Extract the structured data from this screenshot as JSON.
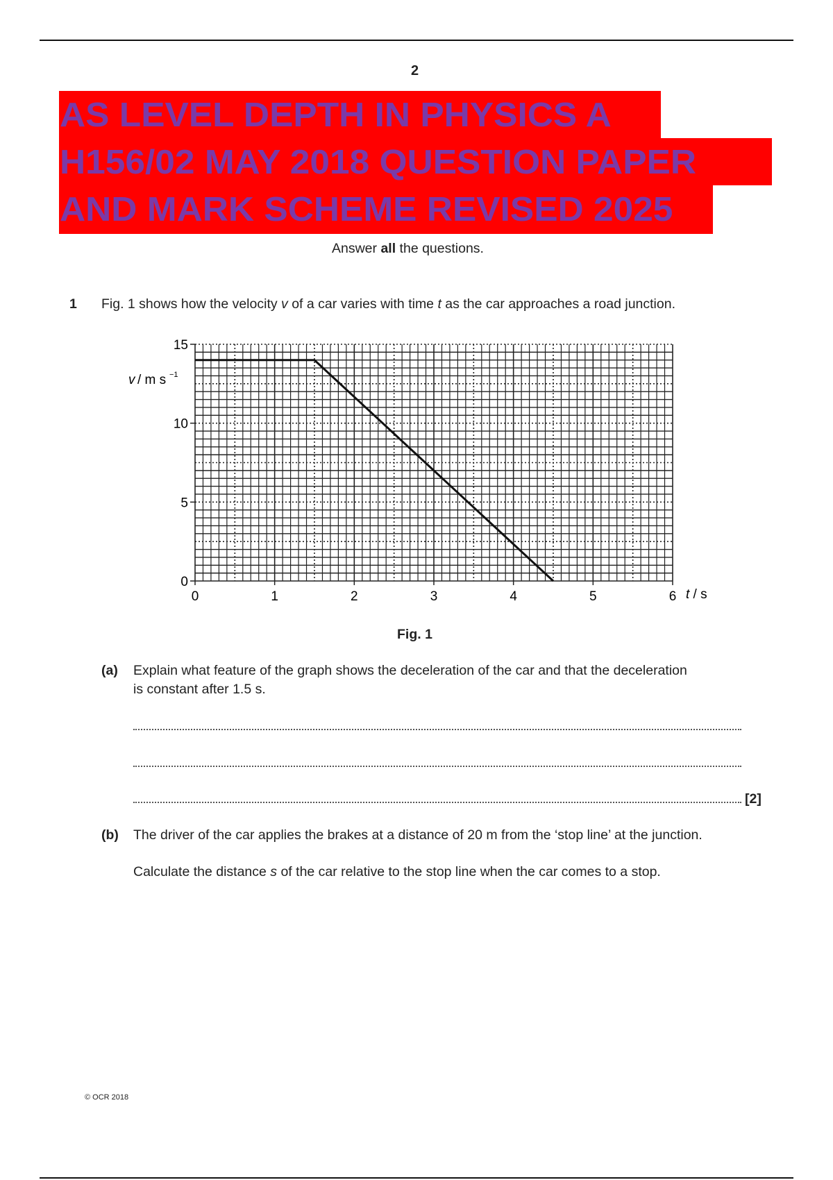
{
  "page_number": "2",
  "banner": {
    "lines": [
      "AS LEVEL DEPTH IN PHYSICS A",
      "H156/02  MAY 2018 QUESTION PAPER",
      "AND MARK SCHEME REVISED 2025"
    ],
    "background_color": "#ff0000",
    "text_color": "#7a3aa8"
  },
  "instruction": {
    "before": "Answer ",
    "bold": "all",
    "after": " the questions."
  },
  "question1": {
    "number": "1",
    "text_parts": [
      "Fig. 1 shows how the velocity ",
      "v",
      " of a car varies with time ",
      "t",
      " as the car approaches a road junction."
    ],
    "figure_caption": "Fig. 1",
    "part_a": {
      "label": "(a)",
      "text_line1": "Explain what feature of the graph shows the deceleration of the car and that the deceleration",
      "text_line2": "is constant after 1.5 s.",
      "marks": "[2]"
    },
    "part_b": {
      "label": "(b)",
      "text": "The driver of the car applies the brakes at a distance of 20 m from the ‘stop line’ at the junction.",
      "text2_parts": [
        "Calculate the distance ",
        "s",
        " of the car relative to the stop line when the car comes to a stop."
      ]
    }
  },
  "chart_data": {
    "type": "line",
    "xlabel": "t / s",
    "ylabel": "v / m s⁻¹",
    "xlim": [
      0,
      6
    ],
    "ylim": [
      0,
      15
    ],
    "x_ticks": [
      "0",
      "1",
      "2",
      "3",
      "4",
      "5",
      "6"
    ],
    "y_ticks": [
      "0",
      "5",
      "10",
      "15"
    ],
    "grid": true,
    "series": [
      {
        "x": [
          0,
          1.5,
          4.5
        ],
        "y": [
          14,
          14,
          0
        ]
      }
    ]
  },
  "footer": {
    "copyright": "© OCR 2018"
  }
}
